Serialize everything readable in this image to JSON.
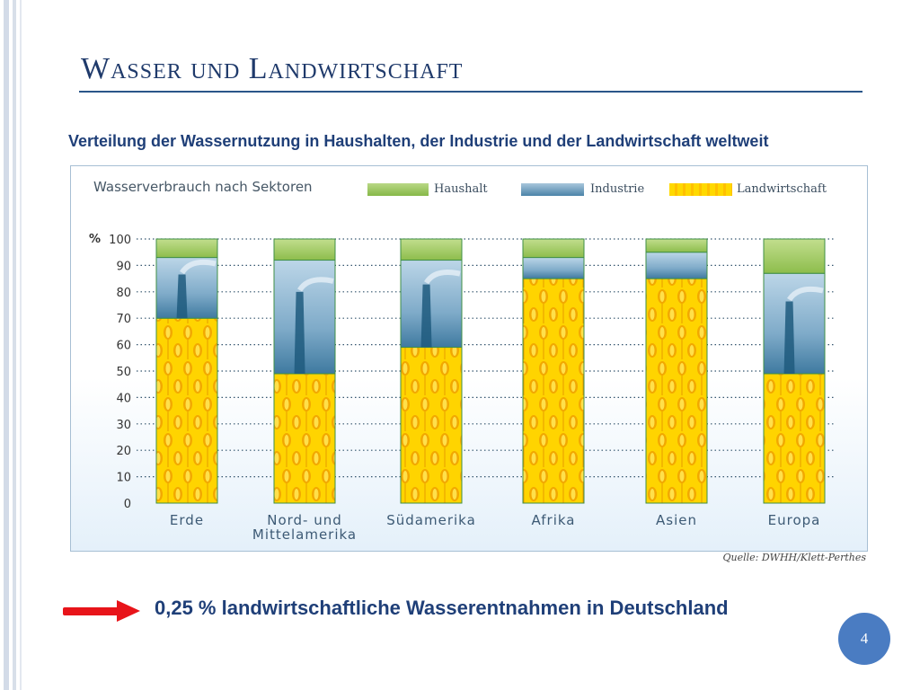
{
  "slide": {
    "title": "Wasser und Landwirtschaft",
    "subtitle": "Verteilung der Wassernutzung in Haushalten, der Industrie und der Landwirtschaft weltweit",
    "source": "Quelle: DWHH/Klett-Perthes",
    "conclusion": "0,25 % landwirtschaftliche Wasserentnahmen in Deutschland",
    "page_number": "4"
  },
  "colors": {
    "accent": "#1f3f78",
    "haushalt": "#9cc65f",
    "industrie": "#6f9fc0",
    "landwirtschaft": "#ffcc00",
    "arrow": "#e8141a",
    "page_badge": "#4a7cc2"
  },
  "chart_data": {
    "type": "bar",
    "stacked": true,
    "title": "Wasserverbrauch nach Sektoren",
    "ylabel": "%",
    "ylim": [
      0,
      100
    ],
    "yticks": [
      0,
      10,
      20,
      30,
      40,
      50,
      60,
      70,
      80,
      90,
      100
    ],
    "grid": "dotted horizontal",
    "legend_position": "top",
    "categories": [
      "Erde",
      "Nord- und Mittelamerika",
      "Südamerika",
      "Afrika",
      "Asien",
      "Europa"
    ],
    "category_labels": [
      [
        "Erde"
      ],
      [
        "Nord- und",
        "Mittelamerika"
      ],
      [
        "Südamerika"
      ],
      [
        "Afrika"
      ],
      [
        "Asien"
      ],
      [
        "Europa"
      ]
    ],
    "series": [
      {
        "name": "Landwirtschaft",
        "values": [
          70,
          49,
          59,
          85,
          85,
          49
        ]
      },
      {
        "name": "Industrie",
        "values": [
          23,
          43,
          33,
          8,
          10,
          38
        ]
      },
      {
        "name": "Haushalt",
        "values": [
          7,
          8,
          8,
          7,
          5,
          13
        ]
      }
    ]
  }
}
